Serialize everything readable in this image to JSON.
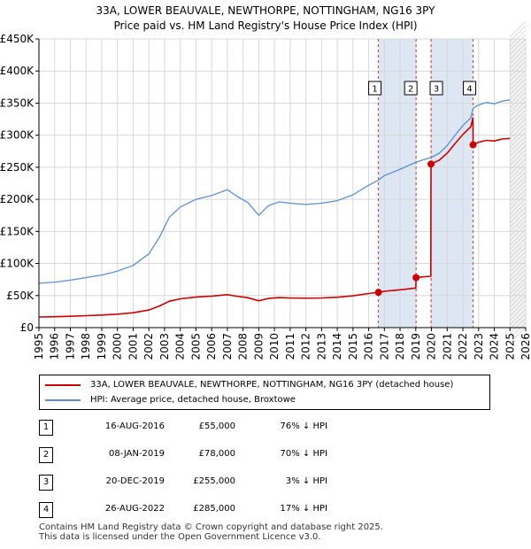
{
  "chart_data": {
    "type": "line",
    "title": "33A, LOWER BEAUVALE, NEWTHORPE, NOTTINGHAM, NG16 3PY",
    "subtitle": "Price paid vs. HM Land Registry's House Price Index (HPI)",
    "xlabel": "",
    "ylabel": "",
    "xlim": [
      1995.0,
      2026.0
    ],
    "ylim": [
      0,
      450000
    ],
    "y_ticks": [
      {
        "value": 0,
        "label": "£0"
      },
      {
        "value": 50000,
        "label": "£50K"
      },
      {
        "value": 100000,
        "label": "£100K"
      },
      {
        "value": 150000,
        "label": "£150K"
      },
      {
        "value": 200000,
        "label": "£200K"
      },
      {
        "value": 250000,
        "label": "£250K"
      },
      {
        "value": 300000,
        "label": "£300K"
      },
      {
        "value": 350000,
        "label": "£350K"
      },
      {
        "value": 400000,
        "label": "£400K"
      },
      {
        "value": 450000,
        "label": "£450K"
      }
    ],
    "x_ticks": [
      "1995",
      "1996",
      "1997",
      "1998",
      "1999",
      "2000",
      "2001",
      "2002",
      "2003",
      "2004",
      "2005",
      "2006",
      "2007",
      "2008",
      "2009",
      "2010",
      "2011",
      "2012",
      "2013",
      "2014",
      "2015",
      "2016",
      "2017",
      "2018",
      "2019",
      "2020",
      "2021",
      "2022",
      "2023",
      "2024",
      "2025",
      "2026"
    ],
    "grid": true,
    "series": [
      {
        "name": "HPI: Average price, detached house, Broxtowe",
        "color": "#5b8fd0",
        "x": [
          1995.0,
          1996.0,
          1997.0,
          1998.0,
          1999.0,
          2000.0,
          2001.0,
          2002.0,
          2002.7,
          2003.3,
          2004.0,
          2005.0,
          2006.0,
          2007.0,
          2007.6,
          2008.3,
          2009.0,
          2009.6,
          2010.3,
          2011.0,
          2012.0,
          2013.0,
          2014.0,
          2015.0,
          2016.0,
          2016.62,
          2017.0,
          2018.0,
          2019.02,
          2019.5,
          2019.97,
          2020.5,
          2021.0,
          2021.5,
          2022.0,
          2022.5,
          2022.65,
          2023.0,
          2023.5,
          2024.0,
          2024.5,
          2025.0
        ],
        "values": [
          69000,
          71000,
          74000,
          78000,
          82000,
          88000,
          97000,
          115000,
          142000,
          172000,
          188000,
          200000,
          206000,
          215000,
          205000,
          195000,
          175000,
          190000,
          196000,
          194000,
          192000,
          194000,
          198000,
          207000,
          222000,
          230000,
          237000,
          247000,
          258000,
          262000,
          265000,
          272000,
          284000,
          300000,
          315000,
          327000,
          342000,
          347000,
          351000,
          349000,
          353000,
          355000
        ]
      },
      {
        "name": "33A, LOWER BEAUVALE, NEWTHORPE, NOTTINGHAM, NG16 3PY (detached house)",
        "color": "#cc0000",
        "x": [
          1995.0,
          1996.0,
          1997.0,
          1998.0,
          1999.0,
          2000.0,
          2001.0,
          2002.0,
          2002.7,
          2003.3,
          2004.0,
          2005.0,
          2006.0,
          2007.0,
          2007.6,
          2008.3,
          2009.0,
          2009.6,
          2010.3,
          2011.0,
          2012.0,
          2013.0,
          2014.0,
          2015.0,
          2016.0,
          2016.62,
          2017.0,
          2018.0,
          2019.0,
          2019.02,
          2019.5,
          2019.96,
          2019.97,
          2020.5,
          2021.0,
          2021.5,
          2022.0,
          2022.5,
          2022.64,
          2022.65,
          2023.0,
          2023.5,
          2024.0,
          2024.5,
          2025.0
        ],
        "values": [
          16500,
          17000,
          17700,
          18600,
          19600,
          21000,
          23200,
          27500,
          34000,
          41100,
          44900,
          47800,
          49200,
          51400,
          49000,
          46600,
          41800,
          45400,
          46800,
          46300,
          45900,
          46300,
          47300,
          49500,
          53100,
          55000,
          56700,
          59000,
          61700,
          78000,
          79200,
          80100,
          255000,
          261000,
          272000,
          287000,
          301000,
          313000,
          327000,
          285000,
          289000,
          292000,
          291000,
          294000,
          295000
        ]
      }
    ],
    "transactions": [
      {
        "num": "1",
        "date": "16-AUG-2016",
        "year": 2016.62,
        "price": 55000,
        "price_label": "£55,000",
        "hpi_label": "76% ↓ HPI"
      },
      {
        "num": "2",
        "date": "08-JAN-2019",
        "year": 2019.02,
        "price": 78000,
        "price_label": "£78,000",
        "hpi_label": "70% ↓ HPI"
      },
      {
        "num": "3",
        "date": "20-DEC-2019",
        "year": 2019.97,
        "price": 255000,
        "price_label": "£255,000",
        "hpi_label": "3% ↓ HPI"
      },
      {
        "num": "4",
        "date": "26-AUG-2022",
        "year": 2022.65,
        "price": 285000,
        "price_label": "£285,000",
        "hpi_label": "17% ↓ HPI"
      }
    ],
    "shaded_ranges": [
      [
        2016.62,
        2019.02
      ],
      [
        2019.97,
        2022.65
      ]
    ],
    "future_from": 2025.0,
    "legend_position": "bottom"
  },
  "footer": {
    "line1": "Contains HM Land Registry data © Crown copyright and database right 2025.",
    "line2": "This data is licensed under the Open Government Licence v3.0."
  },
  "colors": {
    "property": "#cc0000",
    "hpi": "#5b8fd0",
    "shade": "#dde6f3",
    "grid": "#d8d8d8"
  }
}
